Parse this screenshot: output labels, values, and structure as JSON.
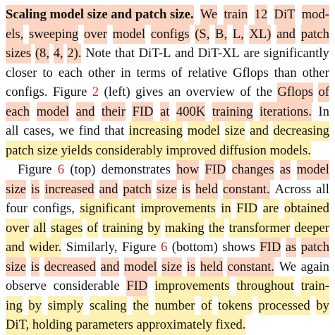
{
  "paragraph1": {
    "heading": "Scaling model size and patch size.",
    "lines": [
      [
        "models, sweeping over model configs (S, B, L, XL) and patch"
      ],
      [
        "sizes (8, 4, 2). Note that DiT-L and DiT-XL are significantly"
      ],
      [
        "closer to each other in terms of relative Gflops than other"
      ],
      [
        "configs. Figure 2 (left) gives an overview of the Gflops of"
      ],
      [
        "each model and their FID at 400K training iterations. In"
      ],
      [
        "all cases, we find that increasing model size and decreasing"
      ],
      [
        "patch size yields considerably improved diffusion models."
      ]
    ],
    "line1_rest": "We train 12 DiT mod-",
    "figure_ref": "2"
  },
  "paragraph2": {
    "lines": [
      "Figure 6 (top) demonstrates how FID changes as model",
      "size is increased and patch size is held constant. Across all",
      "four configs, significant improvements in FID are obtained",
      "over all stages of training by making the transformer deeper",
      "and wider. Similarly, Figure 6 (bottom) shows FID as patch",
      "size is decreased and model size is held constant. We again",
      "observe considerable FID improvements throughout train-",
      "ing by simply scaling the number of tokens processed by",
      "DiT, holding parameters approximately fixed."
    ],
    "figure_ref": "6"
  },
  "highlight_colors": {
    "salmon": "#fac4aa",
    "yellow": "#fdeea0",
    "reference_red": "#c81e1e"
  }
}
